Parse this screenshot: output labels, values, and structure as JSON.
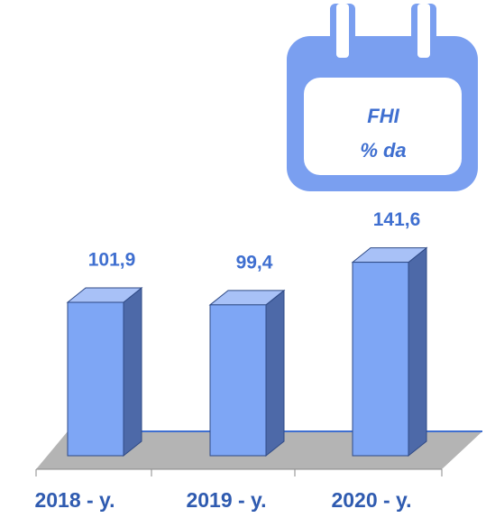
{
  "chart_data": {
    "type": "bar3d",
    "title": "FHI",
    "subtitle": "% da",
    "categories": [
      "2018 - y.",
      "2019 - y.",
      "2020 - y."
    ],
    "values": [
      101.9,
      99.4,
      141.6
    ],
    "value_labels": [
      "101,9",
      "99,4",
      "141,6"
    ],
    "color": "#7ea6f5",
    "ylim": [
      -50,
      160
    ]
  }
}
